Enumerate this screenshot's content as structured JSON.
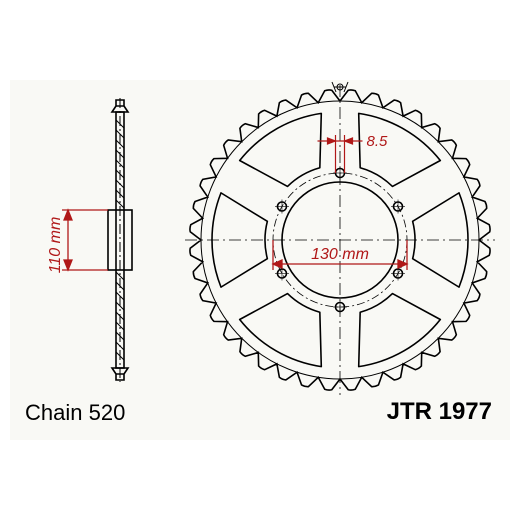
{
  "part_number": "JTR 1977",
  "chain_label": "Chain 520",
  "dimensions": {
    "bolt_circle_label": "130 mm",
    "hub_diameter_label": "110 mm",
    "bolt_hole_label": "8.5"
  },
  "sprocket": {
    "teeth_count": 40,
    "outer_radius": 150,
    "tooth_height": 11,
    "inner_bore_radius": 58,
    "bolt_circle_radius": 67,
    "bolt_hole_radius": 4.5,
    "bolt_hole_count": 6,
    "lightening_hole_count": 6,
    "lightening_inner_r": 75,
    "lightening_outer_r": 128,
    "stroke_color": "#000000",
    "dimension_color": "#b01818",
    "background_color": "#f9f9f5",
    "stroke_width": 1.6
  },
  "side_view": {
    "shaft_height": 260,
    "shaft_width": 8,
    "disc_height": 14,
    "hub_width": 26,
    "hub_height": 60
  }
}
